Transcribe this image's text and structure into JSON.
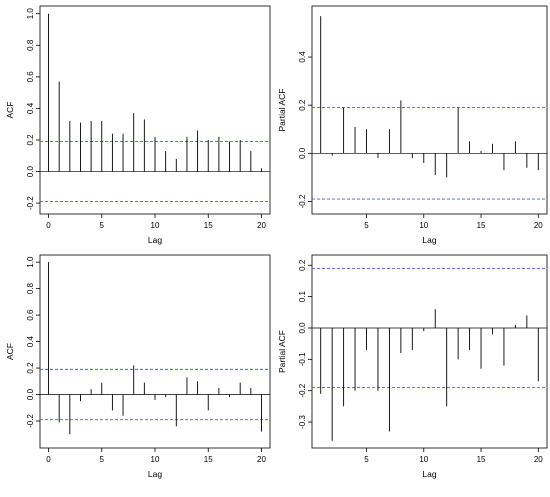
{
  "chart_data": [
    {
      "type": "bar",
      "variant": "acf-stem",
      "ylabel": "ACF",
      "xlabel": "Lag",
      "xlim": [
        0,
        20
      ],
      "ylim": [
        -0.22,
        1.0
      ],
      "xticks": [
        "0",
        "5",
        "10",
        "15",
        "20"
      ],
      "yticks": [
        "-0.2",
        "0.0",
        "0.2",
        "0.4",
        "0.6",
        "0.8",
        "1.0"
      ],
      "confidence_bound": 0.19,
      "bound_color": "#4a5cd6",
      "x": [
        0,
        1,
        2,
        3,
        4,
        5,
        6,
        7,
        8,
        9,
        10,
        11,
        12,
        13,
        14,
        15,
        16,
        17,
        18,
        19,
        20
      ],
      "values": [
        1.0,
        0.57,
        0.32,
        0.31,
        0.32,
        0.32,
        0.24,
        0.24,
        0.37,
        0.33,
        0.22,
        0.13,
        0.08,
        0.22,
        0.26,
        0.2,
        0.22,
        0.19,
        0.2,
        0.13,
        0.02
      ]
    },
    {
      "type": "bar",
      "variant": "pacf-stem",
      "ylabel": "Partial ACF",
      "xlabel": "Lag",
      "xlim": [
        1,
        20
      ],
      "ylim": [
        -0.22,
        0.58
      ],
      "xticks": [
        "5",
        "10",
        "15",
        "20"
      ],
      "yticks": [
        "-0.2",
        "0.0",
        "0.2",
        "0.4"
      ],
      "confidence_bound": 0.19,
      "bound_color": "#4a5cd6",
      "x": [
        1,
        2,
        3,
        4,
        5,
        6,
        7,
        8,
        9,
        10,
        11,
        12,
        13,
        14,
        15,
        16,
        17,
        18,
        19,
        20
      ],
      "values": [
        0.57,
        -0.01,
        0.19,
        0.11,
        0.1,
        -0.02,
        0.1,
        0.22,
        -0.02,
        -0.04,
        -0.09,
        -0.1,
        0.19,
        0.05,
        0.01,
        0.04,
        -0.07,
        0.05,
        -0.06,
        -0.07
      ]
    },
    {
      "type": "bar",
      "variant": "acf-stem",
      "ylabel": "ACF",
      "xlabel": "Lag",
      "xlim": [
        0,
        20
      ],
      "ylim": [
        -0.35,
        1.0
      ],
      "xticks": [
        "0",
        "5",
        "10",
        "15",
        "20"
      ],
      "yticks": [
        "-0.2",
        "0.0",
        "0.2",
        "0.4",
        "0.6",
        "0.8",
        "1.0"
      ],
      "confidence_bound": 0.19,
      "bound_color": "#4a5cd6",
      "x": [
        0,
        1,
        2,
        3,
        4,
        5,
        6,
        7,
        8,
        9,
        10,
        11,
        12,
        13,
        14,
        15,
        16,
        17,
        18,
        19,
        20
      ],
      "values": [
        1.0,
        -0.21,
        -0.3,
        -0.05,
        0.04,
        0.09,
        -0.12,
        -0.16,
        0.22,
        0.09,
        -0.04,
        -0.02,
        -0.24,
        0.13,
        0.1,
        -0.12,
        0.05,
        -0.02,
        0.09,
        0.05,
        -0.28
      ]
    },
    {
      "type": "bar",
      "variant": "pacf-stem",
      "ylabel": "Partial ACF",
      "xlabel": "Lag",
      "xlim": [
        1,
        20
      ],
      "ylim": [
        -0.36,
        0.21
      ],
      "xticks": [
        "5",
        "10",
        "15",
        "20"
      ],
      "yticks": [
        "-0.3",
        "-0.2",
        "-0.1",
        "0.0",
        "0.1",
        "0.2"
      ],
      "confidence_bound": 0.19,
      "bound_color": "#4a5cd6",
      "x": [
        1,
        2,
        3,
        4,
        5,
        6,
        7,
        8,
        9,
        10,
        11,
        12,
        13,
        14,
        15,
        16,
        17,
        18,
        19,
        20
      ],
      "values": [
        -0.21,
        -0.36,
        -0.25,
        -0.2,
        -0.07,
        -0.2,
        -0.33,
        -0.08,
        -0.07,
        -0.01,
        0.06,
        -0.25,
        -0.1,
        -0.07,
        -0.13,
        -0.02,
        -0.12,
        0.01,
        0.04,
        -0.17
      ]
    }
  ]
}
